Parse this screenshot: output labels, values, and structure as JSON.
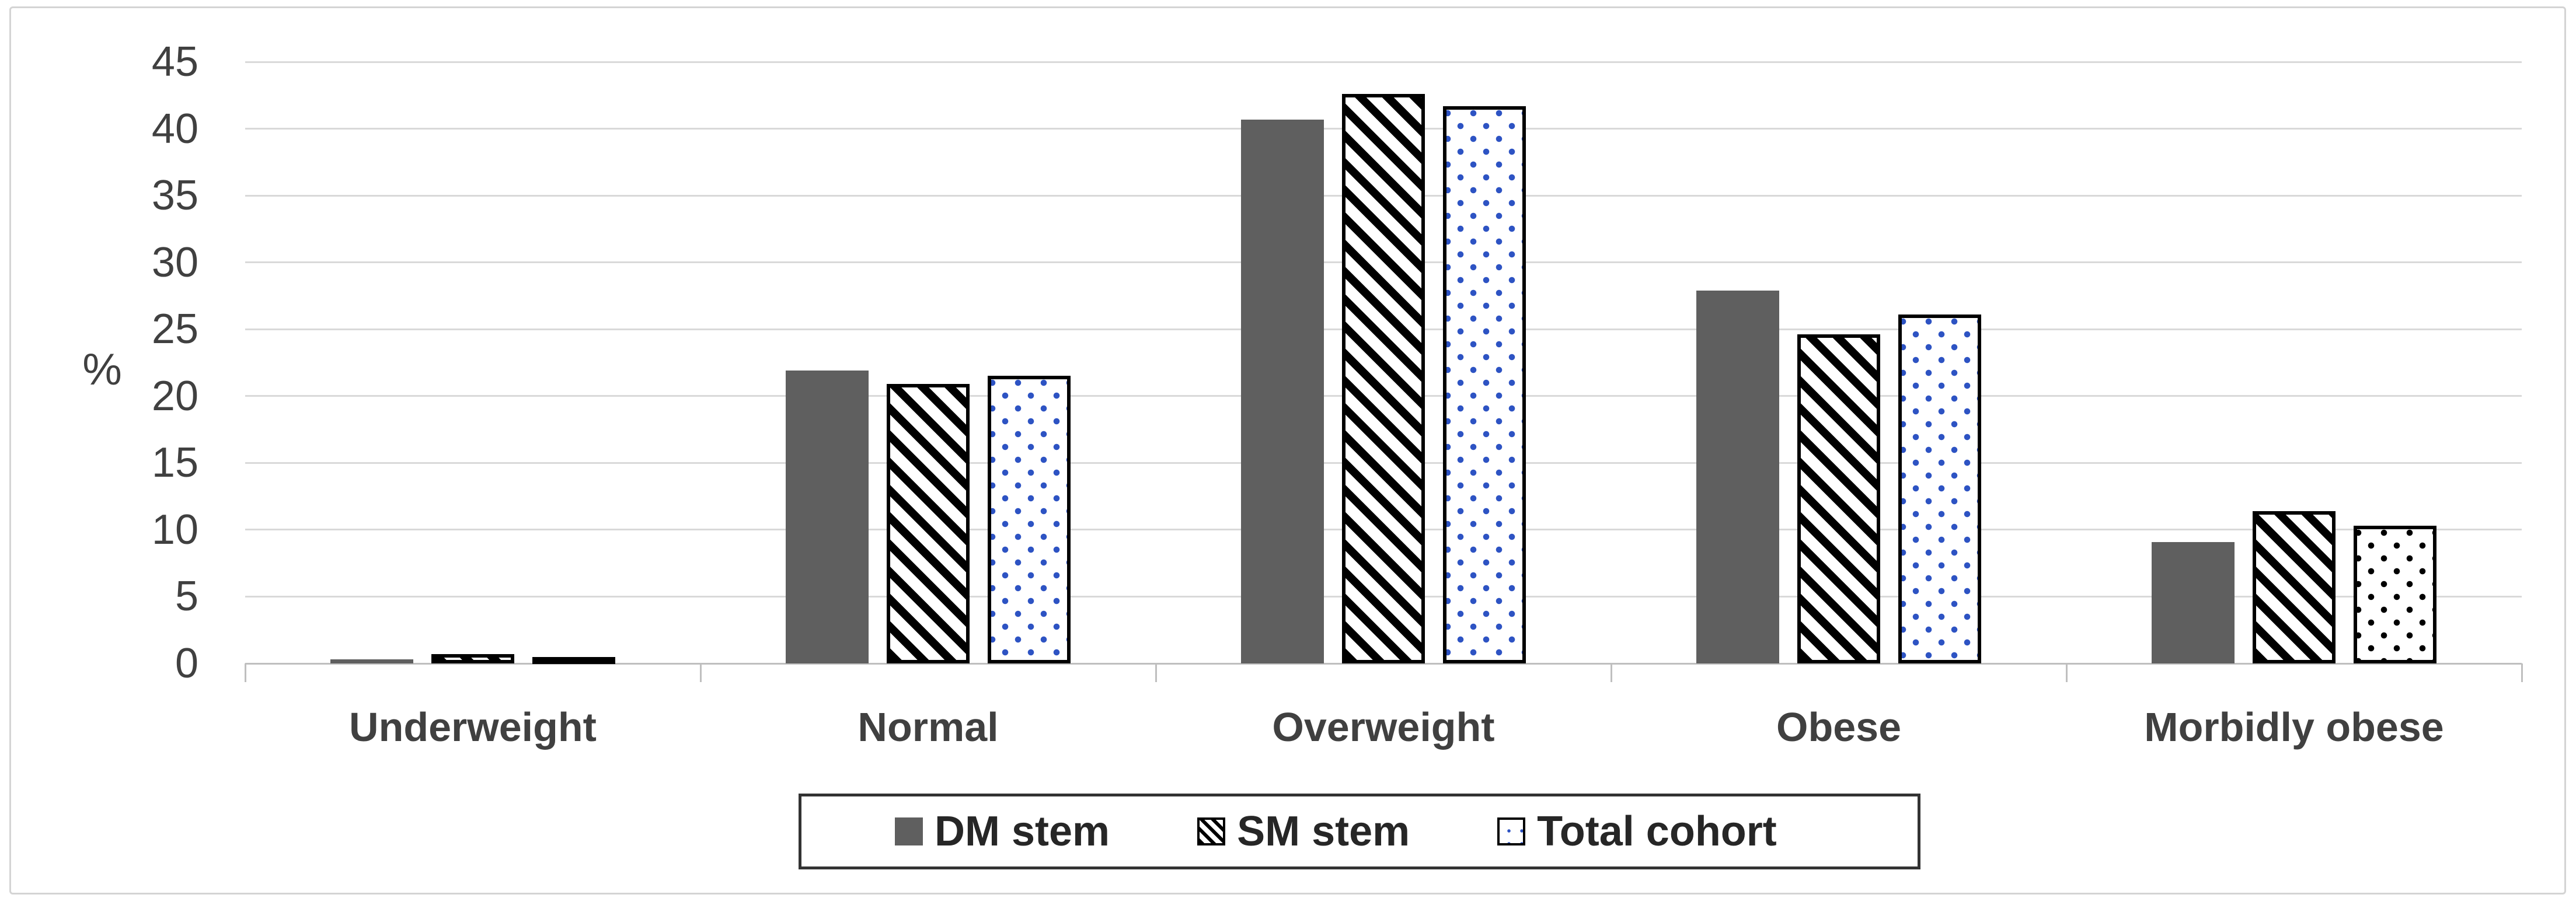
{
  "chart_data": {
    "type": "bar",
    "title": "",
    "xlabel": "",
    "ylabel": "%",
    "categories": [
      "Underweight",
      "Normal",
      "Overweight",
      "Obese",
      "Morbidly obese"
    ],
    "series": [
      {
        "name": "DM stem",
        "pattern": "solid-gray",
        "values": [
          0.3,
          21.9,
          40.7,
          27.9,
          9.1
        ]
      },
      {
        "name": "SM stem",
        "pattern": "black-diagonal-hatch",
        "values": [
          0.7,
          20.9,
          42.6,
          24.6,
          11.4
        ]
      },
      {
        "name": "Total cohort",
        "pattern": "dotted",
        "values": [
          0.5,
          21.5,
          41.7,
          26.1,
          10.3
        ],
        "dot_colors": [
          "blue",
          "blue",
          "blue",
          "blue",
          "black"
        ]
      }
    ],
    "ylim": [
      0,
      45
    ],
    "yticks": [
      0,
      5,
      10,
      15,
      20,
      25,
      30,
      35,
      40,
      45
    ],
    "grid": "horizontal",
    "legend_position": "bottom-center-boxed"
  },
  "colors": {
    "bar_gray": "#5f5f5f",
    "hatch_black": "#000000",
    "dot_blue": "#2d53c3",
    "dot_black": "#000000",
    "gridline": "#d9d9d9",
    "axis_line": "#bfbfbf",
    "tick_text": "#404040",
    "category_text": "#404040",
    "legend_text": "#262626",
    "legend_border": "#333333",
    "figure_border": "#d4d4d4",
    "background": "#ffffff"
  }
}
